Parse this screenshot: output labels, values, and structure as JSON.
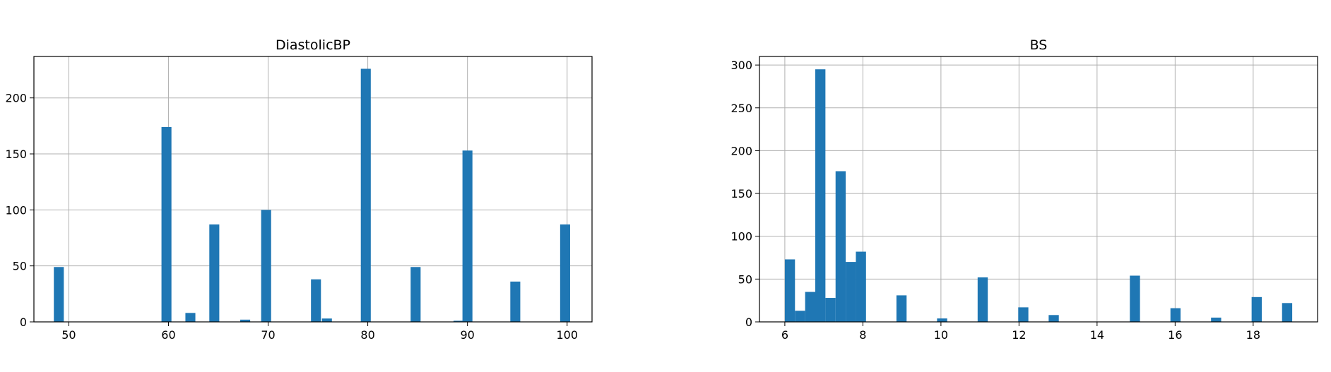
{
  "figure": {
    "background": "#ffffff",
    "bar_color": "#1f77b4",
    "grid_color": "#b0b0b0"
  },
  "chart_data": [
    {
      "type": "bar",
      "title": "DiastolicBP",
      "xlabel": "",
      "ylabel": "",
      "grid": true,
      "xlim": [
        46.5,
        102.5
      ],
      "ylim": [
        0,
        237
      ],
      "xticks": [
        50,
        60,
        70,
        80,
        90,
        100
      ],
      "yticks": [
        0,
        50,
        100,
        150,
        200
      ],
      "bin_width": 1.0,
      "bars": [
        {
          "x": 49.0,
          "value": 49
        },
        {
          "x": 59.8,
          "value": 174
        },
        {
          "x": 62.2,
          "value": 8
        },
        {
          "x": 64.6,
          "value": 87
        },
        {
          "x": 67.7,
          "value": 2
        },
        {
          "x": 69.8,
          "value": 100
        },
        {
          "x": 74.8,
          "value": 38
        },
        {
          "x": 75.9,
          "value": 3
        },
        {
          "x": 79.8,
          "value": 226
        },
        {
          "x": 84.8,
          "value": 49
        },
        {
          "x": 89.1,
          "value": 1
        },
        {
          "x": 90.0,
          "value": 153
        },
        {
          "x": 94.8,
          "value": 36
        },
        {
          "x": 99.8,
          "value": 87
        }
      ]
    },
    {
      "type": "bar",
      "title": "BS",
      "xlabel": "",
      "ylabel": "",
      "grid": true,
      "xlim": [
        5.35,
        19.65
      ],
      "ylim": [
        0,
        310
      ],
      "xticks": [
        6,
        8,
        10,
        12,
        14,
        16,
        18
      ],
      "yticks": [
        0,
        50,
        100,
        150,
        200,
        250,
        300
      ],
      "bin_width": 0.26,
      "bars": [
        {
          "x": 6.13,
          "value": 73
        },
        {
          "x": 6.39,
          "value": 13
        },
        {
          "x": 6.65,
          "value": 35
        },
        {
          "x": 6.91,
          "value": 295
        },
        {
          "x": 7.17,
          "value": 28
        },
        {
          "x": 7.43,
          "value": 176
        },
        {
          "x": 7.69,
          "value": 70
        },
        {
          "x": 7.95,
          "value": 82
        },
        {
          "x": 8.99,
          "value": 31
        },
        {
          "x": 10.03,
          "value": 4
        },
        {
          "x": 11.07,
          "value": 52
        },
        {
          "x": 12.11,
          "value": 17
        },
        {
          "x": 12.89,
          "value": 8
        },
        {
          "x": 14.97,
          "value": 54
        },
        {
          "x": 16.01,
          "value": 16
        },
        {
          "x": 17.05,
          "value": 5
        },
        {
          "x": 18.09,
          "value": 29
        },
        {
          "x": 18.87,
          "value": 22
        }
      ]
    }
  ]
}
